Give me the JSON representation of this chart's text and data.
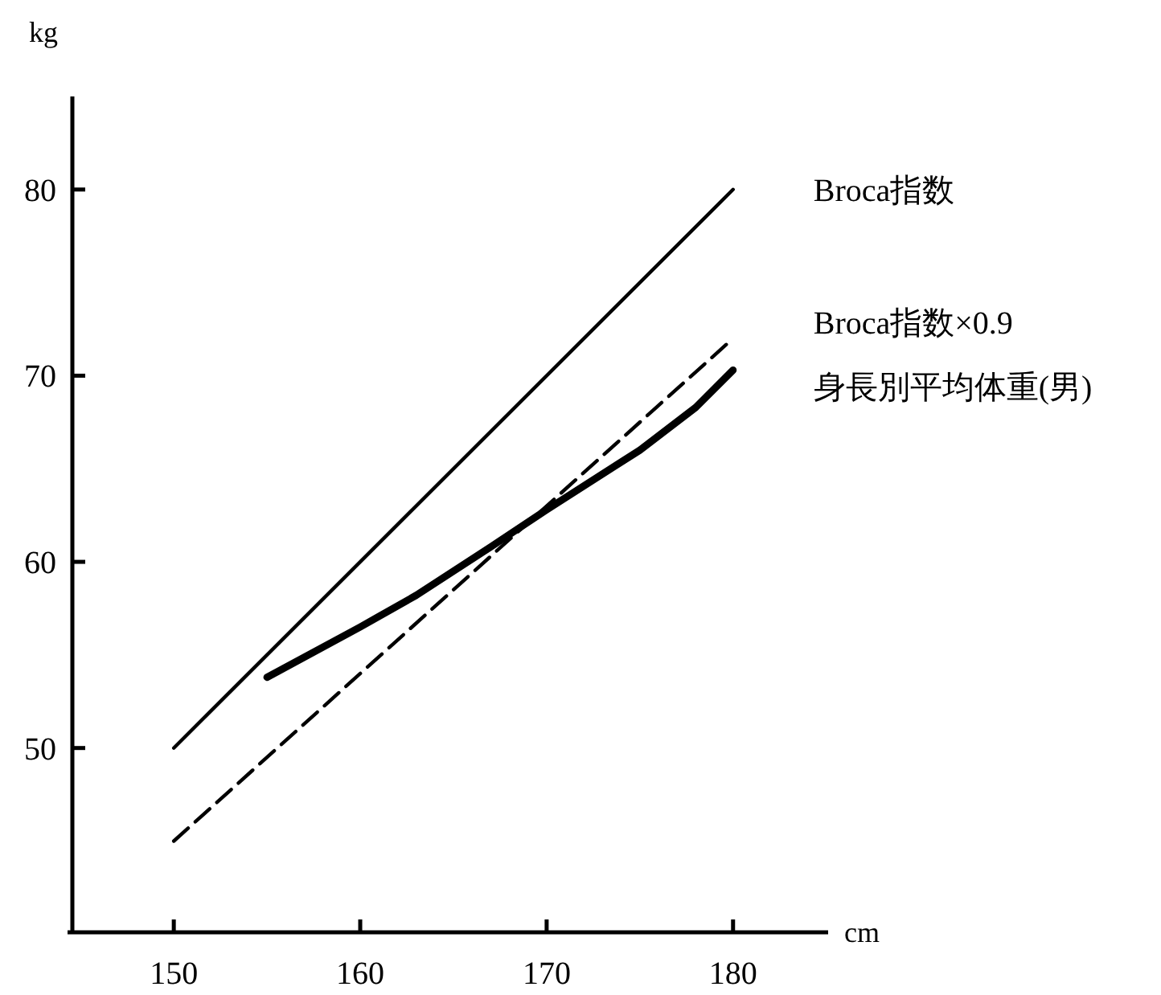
{
  "chart_data": {
    "type": "line",
    "xlabel": "cm",
    "ylabel": "kg",
    "xlim": [
      144.3,
      185.1
    ],
    "ylim": [
      40.1,
      85
    ],
    "xticks": [
      150,
      160,
      170,
      180
    ],
    "yticks": [
      50,
      60,
      70,
      80
    ],
    "series": [
      {
        "name": "Broca指数",
        "color": "#000000",
        "line_style": "solid",
        "x": [
          150,
          180
        ],
        "values": [
          50,
          80
        ]
      },
      {
        "name": "Broca指数×0.9",
        "color": "#000000",
        "line_style": "dashed",
        "x": [
          150,
          180
        ],
        "values": [
          45,
          72
        ]
      },
      {
        "name": "身長別平均体重(男)",
        "color": "#000000",
        "line_style": "solid",
        "x": [
          155,
          160,
          163,
          167,
          170,
          175,
          178,
          180
        ],
        "values": [
          53.8,
          56.5,
          58.2,
          60.8,
          62.8,
          66,
          68.3,
          70.3
        ]
      }
    ]
  }
}
